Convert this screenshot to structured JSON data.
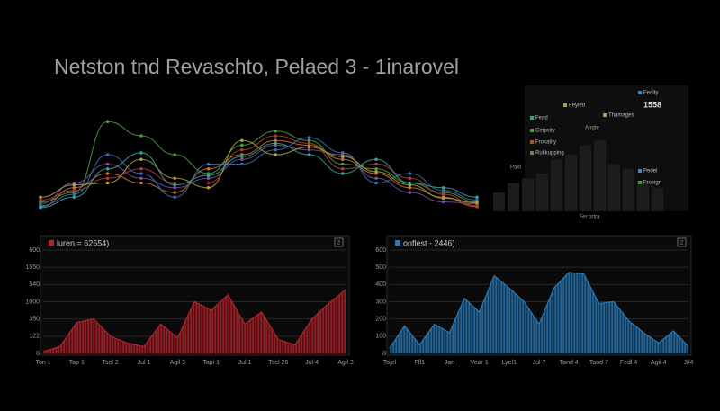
{
  "header": {
    "title": "Netston tnd Revaschto, Pelaed 3 - 1inarovel"
  },
  "chart_data": [
    {
      "type": "line",
      "ylim": [
        0,
        100
      ],
      "series": [
        {
          "name": null,
          "color": "#4f9a3a",
          "values": [
            10,
            20,
            95,
            80,
            60,
            40,
            70,
            85,
            75,
            50,
            45,
            30,
            20,
            10
          ]
        },
        {
          "name": null,
          "color": "#c0733a",
          "values": [
            5,
            25,
            40,
            30,
            20,
            45,
            60,
            75,
            70,
            55,
            40,
            25,
            15,
            5
          ]
        },
        {
          "name": null,
          "color": "#7a4fa0",
          "values": [
            8,
            30,
            50,
            35,
            25,
            35,
            55,
            70,
            65,
            60,
            35,
            20,
            10,
            8
          ]
        },
        {
          "name": null,
          "color": "#b03a3a",
          "values": [
            12,
            22,
            35,
            45,
            30,
            30,
            65,
            80,
            72,
            45,
            50,
            35,
            18,
            6
          ]
        },
        {
          "name": null,
          "color": "#3a6fb0",
          "values": [
            6,
            18,
            60,
            40,
            15,
            50,
            50,
            65,
            78,
            62,
            30,
            40,
            22,
            12
          ]
        },
        {
          "name": null,
          "color": "#b0a03a",
          "values": [
            15,
            28,
            30,
            55,
            35,
            25,
            75,
            60,
            68,
            58,
            42,
            28,
            14,
            9
          ]
        },
        {
          "name": null,
          "color": "#3aa09a",
          "values": [
            4,
            15,
            45,
            62,
            28,
            38,
            58,
            72,
            60,
            40,
            55,
            30,
            25,
            15
          ]
        }
      ]
    },
    {
      "type": "bar",
      "ylim": [
        0,
        100
      ],
      "values": [
        20,
        30,
        35,
        40,
        55,
        60,
        70,
        75,
        50,
        45,
        30,
        25
      ],
      "xlabel": "Fer prtra",
      "legend": [
        {
          "name": "Fead",
          "color": "#3aa09a"
        },
        {
          "name": "Cetpsity",
          "color": "#4f9a3a"
        },
        {
          "name": "Frokatity",
          "color": "#c04a3a"
        },
        {
          "name": "Rukkupping",
          "color": "#4f9a3a"
        },
        {
          "name": "Feyled",
          "color": "#b0a03a"
        },
        {
          "name": "Thamages",
          "color": "#b0a03a"
        },
        {
          "name": "Fealty",
          "color": "#3a8ac0"
        },
        {
          "name": "Pedel",
          "color": "#3a8ac0"
        },
        {
          "name": "Frosign",
          "color": "#4f9a3a"
        }
      ],
      "annotations": [
        "1558",
        "Angte",
        "Paxt"
      ]
    },
    {
      "type": "area",
      "title": "luren = 62554)",
      "badge": "2",
      "color": "#b3242c",
      "ylim": [
        0,
        600
      ],
      "yticks": [
        {
          "value": 0,
          "label": "0"
        },
        {
          "value": 100,
          "label": "122"
        },
        {
          "value": 200,
          "label": "350"
        },
        {
          "value": 300,
          "label": "1000"
        },
        {
          "value": 400,
          "label": "540"
        },
        {
          "value": 500,
          "label": "1550"
        },
        600
      ],
      "categories": [
        "Ton 1",
        null,
        "Tap 1",
        null,
        "Tsel 2",
        null,
        "Jul 1",
        null,
        "Agil 3",
        null,
        "Tapi 1",
        null,
        "Jul 1",
        null,
        "Tsel 26",
        null,
        "Jul 4",
        null,
        "Agil 3"
      ],
      "values": [
        10,
        40,
        180,
        200,
        100,
        60,
        40,
        170,
        90,
        300,
        250,
        340,
        170,
        240,
        80,
        50,
        200,
        290,
        370
      ]
    },
    {
      "type": "area",
      "title": "onflest - 2446)",
      "badge": "2",
      "color": "#2a7ab8",
      "ylim": [
        0,
        600
      ],
      "yticks": [
        0,
        100,
        200,
        300,
        400,
        500,
        600
      ],
      "categories": [
        "Tojel",
        null,
        "Ffl1",
        null,
        "Jan",
        null,
        "Vear 1",
        null,
        "Lyel1",
        null,
        "Jul 7",
        null,
        "Tand 4",
        null,
        "Tand 7",
        null,
        "Fedl 4",
        null,
        "Agil 4",
        null,
        "Ji/4"
      ],
      "values": [
        30,
        160,
        50,
        170,
        120,
        320,
        240,
        450,
        380,
        300,
        170,
        380,
        470,
        460,
        290,
        300,
        190,
        120,
        60,
        130,
        40
      ]
    }
  ]
}
